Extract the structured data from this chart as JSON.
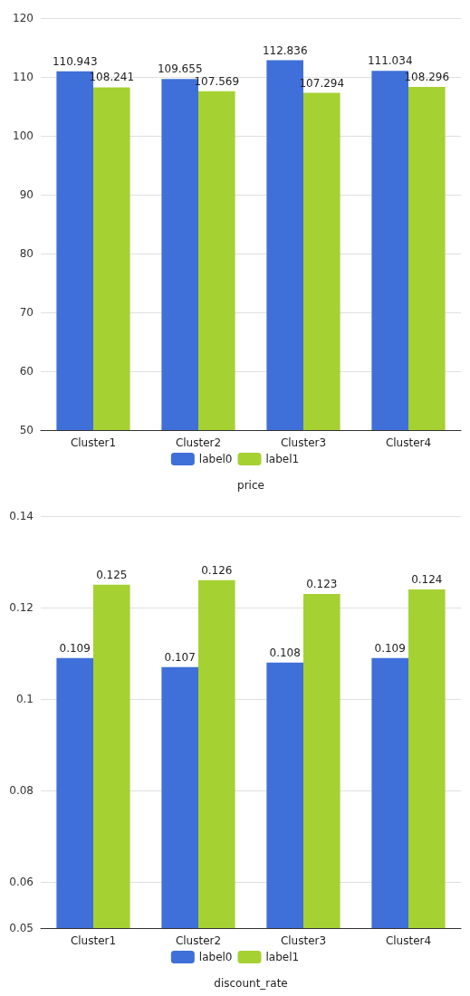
{
  "chart_data": [
    {
      "type": "bar",
      "xlabel": "price",
      "categories": [
        "Cluster1",
        "Cluster2",
        "Cluster3",
        "Cluster4"
      ],
      "series": [
        {
          "name": "label0",
          "color": "#3f6fd8",
          "values": [
            110.943,
            109.655,
            112.836,
            111.034
          ]
        },
        {
          "name": "label1",
          "color": "#a6d132",
          "values": [
            108.241,
            107.569,
            107.294,
            108.296
          ]
        }
      ],
      "ylim": [
        50,
        120
      ],
      "yticks": [
        50,
        60,
        70,
        80,
        90,
        100,
        110,
        120
      ],
      "grid": "y",
      "legend": "bottom",
      "data_labels": true
    },
    {
      "type": "bar",
      "xlabel": "discount_rate",
      "categories": [
        "Cluster1",
        "Cluster2",
        "Cluster3",
        "Cluster4"
      ],
      "series": [
        {
          "name": "label0",
          "color": "#3f6fd8",
          "values": [
            0.109,
            0.107,
            0.108,
            0.109
          ]
        },
        {
          "name": "label1",
          "color": "#a6d132",
          "values": [
            0.125,
            0.126,
            0.123,
            0.124
          ]
        }
      ],
      "ylim": [
        0.05,
        0.14
      ],
      "yticks": [
        0.05,
        0.06,
        0.08,
        0.1,
        0.12,
        0.14
      ],
      "grid": "y",
      "legend": "bottom",
      "data_labels": true
    }
  ]
}
